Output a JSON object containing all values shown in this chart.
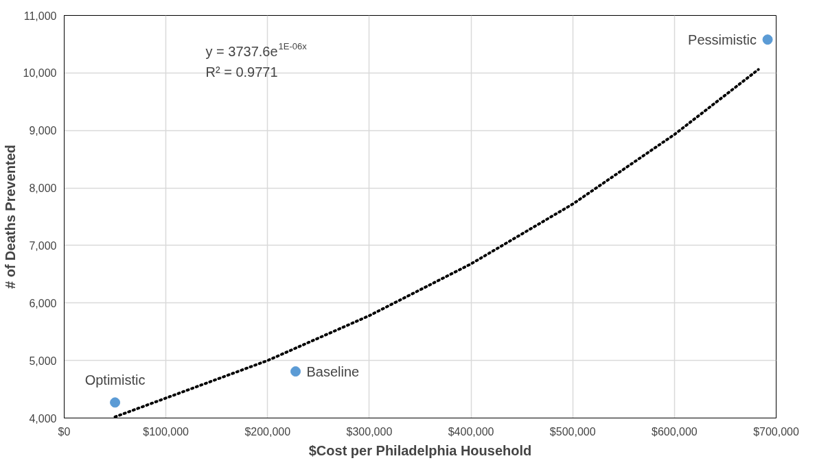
{
  "chart_data": {
    "type": "scatter",
    "xlabel": "$Cost per Philadelphia Household",
    "ylabel": "# of Deaths Prevented",
    "xlim": [
      0,
      700000
    ],
    "ylim": [
      4000,
      11000
    ],
    "xticks": [
      {
        "value": 0,
        "label": "$0"
      },
      {
        "value": 100000,
        "label": "$100,000"
      },
      {
        "value": 200000,
        "label": "$200,000"
      },
      {
        "value": 300000,
        "label": "$300,000"
      },
      {
        "value": 400000,
        "label": "$400,000"
      },
      {
        "value": 500000,
        "label": "$500,000"
      },
      {
        "value": 600000,
        "label": "$600,000"
      },
      {
        "value": 700000,
        "label": "$700,000"
      }
    ],
    "yticks": [
      {
        "value": 4000,
        "label": "4,000"
      },
      {
        "value": 5000,
        "label": "5,000"
      },
      {
        "value": 6000,
        "label": "6,000"
      },
      {
        "value": 7000,
        "label": "7,000"
      },
      {
        "value": 8000,
        "label": "8,000"
      },
      {
        "value": 9000,
        "label": "9,000"
      },
      {
        "value": 10000,
        "label": "10,000"
      },
      {
        "value": 11000,
        "label": "11,000"
      }
    ],
    "grid": true,
    "series": [
      {
        "color": "#5b9bd5",
        "marker": "circle",
        "x": [
          50000,
          227500,
          691600
        ],
        "values": [
          4270,
          4810,
          10580
        ]
      },
      {
        "type": "line",
        "color": "#000000",
        "line_style": "dotted",
        "marker": "none",
        "x": [
          50000,
          200000,
          300000,
          400000,
          500000,
          600000,
          682500
        ],
        "values": [
          4020,
          5000,
          5780,
          6680,
          7720,
          8930,
          10060
        ]
      }
    ],
    "annotations": [
      {
        "text": "Optimistic",
        "x": 50000,
        "y": 4270
      },
      {
        "text": "Baseline",
        "x": 227500,
        "y": 4810
      },
      {
        "text": "Pessimistic",
        "x": 691600,
        "y": 10580
      },
      "y = 3737.6e$^{1E-06x}$",
      "R² = 0.9771"
    ]
  }
}
